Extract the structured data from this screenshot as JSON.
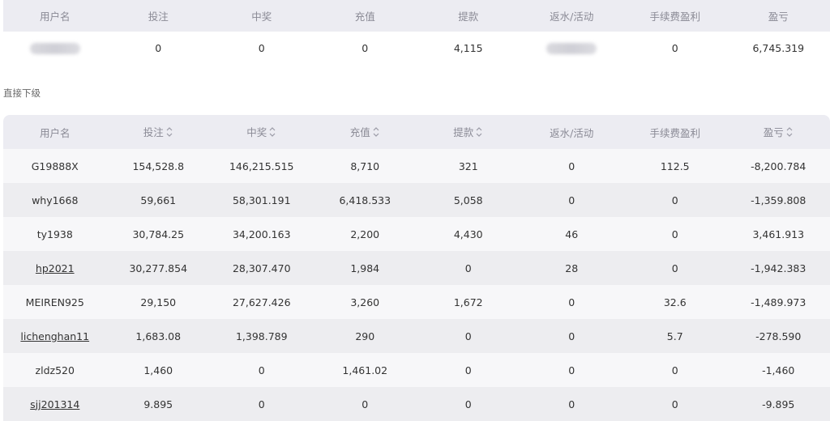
{
  "summary": {
    "headers": [
      "用户名",
      "投注",
      "中奖",
      "充值",
      "提款",
      "返水/活动",
      "手续费盈利",
      "盈亏"
    ],
    "row": {
      "bet": "0",
      "win": "0",
      "deposit": "0",
      "withdraw": "4,115",
      "fee_profit": "0",
      "profit_loss": "6,745.319"
    }
  },
  "section_title": "直接下级",
  "subordinates": {
    "headers": [
      "用户名",
      "投注",
      "中奖",
      "充值",
      "提款",
      "返水/活动",
      "手续费盈利",
      "盈亏"
    ],
    "rows": [
      {
        "username": "G19888X",
        "bet": "154,528.8",
        "win": "146,215.515",
        "deposit": "8,710",
        "withdraw": "321",
        "rebate": "0",
        "fee": "112.5",
        "pl": "-8,200.784"
      },
      {
        "username": "why1668",
        "bet": "59,661",
        "win": "58,301.191",
        "deposit": "6,418.533",
        "withdraw": "5,058",
        "rebate": "0",
        "fee": "0",
        "pl": "-1,359.808"
      },
      {
        "username": "ty1938",
        "bet": "30,784.25",
        "win": "34,200.163",
        "deposit": "2,200",
        "withdraw": "4,430",
        "rebate": "46",
        "fee": "0",
        "pl": "3,461.913"
      },
      {
        "username": "hp2021",
        "bet": "30,277.854",
        "win": "28,307.470",
        "deposit": "1,984",
        "withdraw": "0",
        "rebate": "28",
        "fee": "0",
        "pl": "-1,942.383"
      },
      {
        "username": "MEIREN925",
        "bet": "29,150",
        "win": "27,627.426",
        "deposit": "3,260",
        "withdraw": "1,672",
        "rebate": "0",
        "fee": "32.6",
        "pl": "-1,489.973"
      },
      {
        "username": "lichenghan11",
        "bet": "1,683.08",
        "win": "1,398.789",
        "deposit": "290",
        "withdraw": "0",
        "rebate": "0",
        "fee": "5.7",
        "pl": "-278.590"
      },
      {
        "username": "zldz520",
        "bet": "1,460",
        "win": "0",
        "deposit": "1,461.02",
        "withdraw": "0",
        "rebate": "0",
        "fee": "0",
        "pl": "-1,460"
      },
      {
        "username": "sjj201314",
        "bet": "9.895",
        "win": "0",
        "deposit": "0",
        "withdraw": "0",
        "rebate": "0",
        "fee": "0",
        "pl": "-9.895"
      }
    ]
  }
}
